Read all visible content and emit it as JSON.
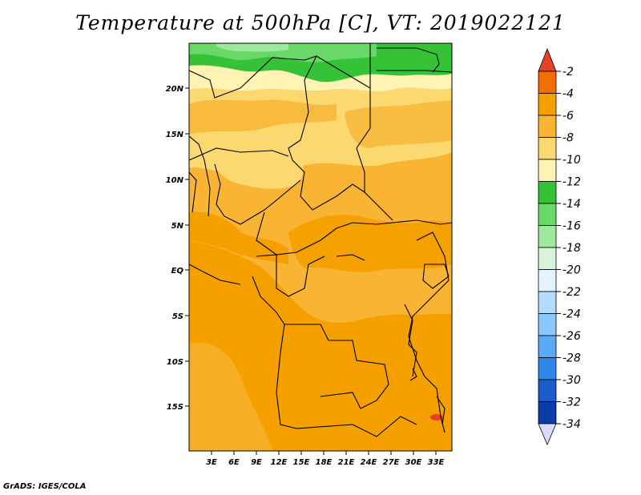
{
  "title": "Temperature at 500hPa [C], VT: 2019022121",
  "credit": "GrADS: IGES/COLA",
  "map": {
    "lat_ticks": [
      "20N",
      "15N",
      "10N",
      "5N",
      "EQ",
      "5S",
      "10S",
      "15S"
    ],
    "lon_ticks": [
      "3E",
      "6E",
      "9E",
      "12E",
      "15E",
      "18E",
      "21E",
      "24E",
      "27E",
      "30E",
      "33E"
    ]
  },
  "colorbar": {
    "labels": [
      "-2",
      "-4",
      "-6",
      "-8",
      "-10",
      "-12",
      "-14",
      "-16",
      "-18",
      "-20",
      "-22",
      "-24",
      "-26",
      "-28",
      "-30",
      "-32",
      "-34"
    ],
    "colors": [
      "#e8412a",
      "#f46d00",
      "#f6a000",
      "#f8b432",
      "#fbd870",
      "#fff4b4",
      "#36c236",
      "#68d868",
      "#9ee89e",
      "#d8f4d8",
      "#e4f4ff",
      "#b4dcff",
      "#8ac8ff",
      "#5aaaf6",
      "#2e86e8",
      "#1a5cc8",
      "#0c3ca8",
      "#06208c"
    ],
    "bottom_color": "#dcdcff"
  }
}
